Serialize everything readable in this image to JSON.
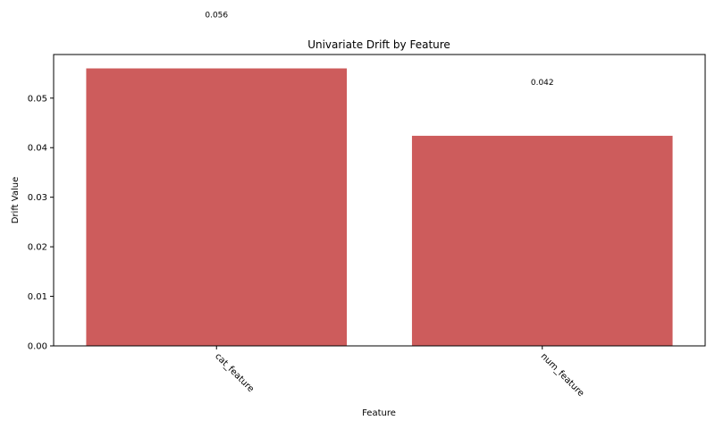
{
  "chart_data": {
    "type": "bar",
    "title": "Univariate Drift by Feature",
    "xlabel": "Feature",
    "ylabel": "Drift Value",
    "categories": [
      "cat_feature",
      "num_feature"
    ],
    "values": [
      0.056,
      0.0424
    ],
    "data_labels": [
      "0.056",
      "0.042"
    ],
    "ylim": [
      0,
      0.0588
    ],
    "yticks": [
      0.0,
      0.01,
      0.02,
      0.03,
      0.04,
      0.05
    ],
    "ytick_labels": [
      "0.00",
      "0.01",
      "0.02",
      "0.03",
      "0.04",
      "0.05"
    ],
    "bar_color": "#cd5c5c",
    "grid": false,
    "legend": "none"
  }
}
